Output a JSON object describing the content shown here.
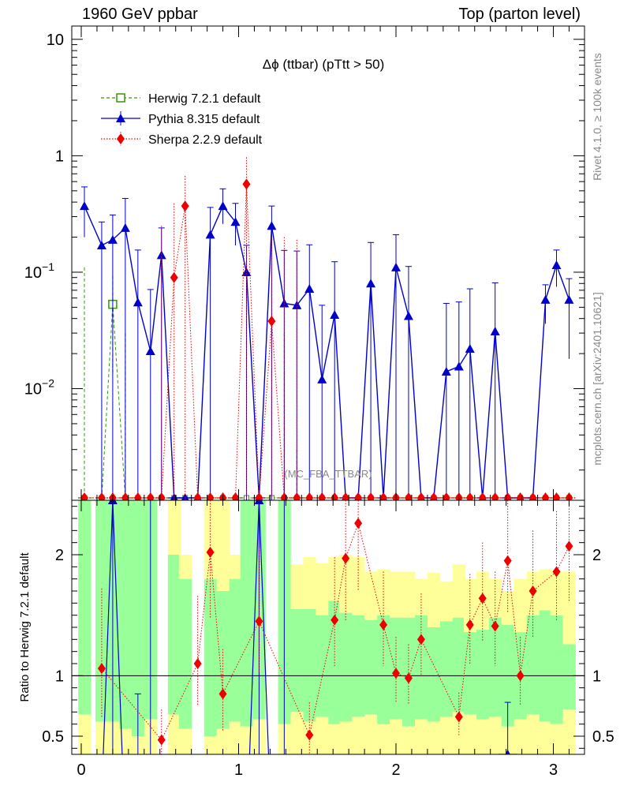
{
  "header": {
    "left": "1960 GeV ppbar",
    "right": "Top (parton level)",
    "side_top": "Rivet 4.1.0, ≥ 100k events",
    "side_bottom": "mcplots.cern.ch [arXiv:2401.10621]"
  },
  "chart_data": [
    {
      "type": "line",
      "title": "Δϕ (ttbar) (pTtt > 50)",
      "analysis_label": "(MC_FBA_TTBAR)",
      "yscale": "log",
      "xlim": [
        -0.05,
        3.2
      ],
      "ylim": [
        0.0011,
        13
      ],
      "y_ticks": [
        {
          "value": 10,
          "label": "10"
        },
        {
          "value": 1,
          "label": "1"
        },
        {
          "value": 0.1,
          "label": "10",
          "exp": "−1"
        },
        {
          "value": 0.01,
          "label": "10",
          "exp": "−2"
        }
      ],
      "x": [
        0.02,
        0.13,
        0.2,
        0.28,
        0.36,
        0.44,
        0.51,
        0.59,
        0.66,
        0.74,
        0.82,
        0.9,
        0.98,
        1.05,
        1.13,
        1.21,
        1.29,
        1.37,
        1.45,
        1.53,
        1.61,
        1.68,
        1.76,
        1.84,
        1.92,
        2.0,
        2.08,
        2.16,
        2.24,
        2.32,
        2.4,
        2.47,
        2.55,
        2.63,
        2.71,
        2.79,
        2.87,
        2.95,
        3.02,
        3.1
      ],
      "series": [
        {
          "name": "Herwig 7.2.1 default",
          "color": "#339900",
          "marker": "open-square",
          "linestyle": "dashed",
          "values": [
            0,
            0,
            0.053,
            0,
            0,
            0,
            0,
            0,
            0,
            0,
            0,
            0,
            0,
            0,
            0,
            0,
            0,
            0,
            0,
            0,
            0,
            0,
            0,
            0,
            0,
            0,
            0,
            0,
            0,
            0,
            0,
            0,
            0,
            0,
            0,
            0,
            0,
            0,
            0,
            0
          ],
          "err_up": [
            0.11,
            0,
            0.04,
            0.03,
            0,
            0,
            0,
            0,
            0,
            0,
            0,
            0,
            0,
            0,
            0,
            0,
            0.03,
            0.003,
            0,
            0,
            0,
            0,
            0,
            0,
            0,
            0,
            0,
            0,
            0,
            0,
            0,
            0,
            0,
            0,
            0,
            0,
            0,
            0,
            0,
            0
          ],
          "err_down": [
            0,
            0,
            0.04,
            0,
            0,
            0,
            0,
            0,
            0,
            0,
            0,
            0,
            0,
            0,
            0,
            0,
            0,
            0,
            0,
            0,
            0,
            0,
            0,
            0,
            0,
            0,
            0,
            0,
            0,
            0,
            0,
            0,
            0,
            0,
            0,
            0,
            0,
            0,
            0,
            0
          ]
        },
        {
          "name": "Pythia 8.315 default",
          "color": "#0000cc",
          "marker": "filled-triangle",
          "linestyle": "solid",
          "values": [
            0.37,
            0.17,
            0.19,
            0.24,
            0.055,
            0.021,
            0.14,
            0,
            0,
            0,
            0.21,
            0.37,
            0.27,
            0.1,
            0,
            0.25,
            0.054,
            0.052,
            0.072,
            0.012,
            0.043,
            0,
            0,
            0.08,
            0,
            0.11,
            0.042,
            0,
            0,
            0.014,
            0.0155,
            0.022,
            0,
            0.031,
            0,
            0,
            0,
            0.058,
            0.115,
            0.058
          ],
          "err_up": [
            0.17,
            0.1,
            0.12,
            0.19,
            0.1,
            0.05,
            0.1,
            0,
            0,
            0,
            0.15,
            0.15,
            0.12,
            0.07,
            0,
            0.12,
            0.1,
            0.1,
            0.1,
            0.04,
            0.08,
            0,
            0,
            0.1,
            0,
            0.1,
            0.07,
            0,
            0,
            0.04,
            0.04,
            0.05,
            0,
            0.05,
            0,
            0,
            0,
            0.02,
            0.04,
            0.03
          ],
          "err_down": [
            0.17,
            0.17,
            0.19,
            0.24,
            0.055,
            0.021,
            0.14,
            0,
            0,
            0,
            0.21,
            0.11,
            0.1,
            0.1,
            0,
            0.25,
            0.054,
            0.052,
            0.072,
            0.012,
            0.043,
            0,
            0,
            0.08,
            0,
            0.11,
            0.042,
            0,
            0,
            0.014,
            0.0155,
            0.022,
            0,
            0.031,
            0,
            0,
            0,
            0.022,
            0.04,
            0.04
          ]
        },
        {
          "name": "Sherpa 2.2.9 default",
          "color": "#ee0000",
          "marker": "filled-diamond",
          "linestyle": "dotted",
          "values": [
            0,
            0,
            0,
            0,
            0,
            0,
            0,
            0.09,
            0.37,
            0,
            0,
            0,
            0,
            0.57,
            0,
            0.038,
            0,
            0,
            0,
            0,
            0,
            0,
            0,
            0,
            0,
            0,
            0,
            0,
            0,
            0,
            0,
            0,
            0,
            0,
            0,
            0,
            0,
            0,
            0,
            0
          ],
          "err_up": [
            0,
            0,
            0,
            0,
            0,
            0,
            0.25,
            0.3,
            0.3,
            0,
            0,
            0,
            0,
            0.4,
            0,
            0.16,
            0.2,
            0.19,
            0,
            0,
            0,
            0,
            0,
            0,
            0,
            0,
            0,
            0,
            0,
            0,
            0,
            0,
            0,
            0,
            0,
            0,
            0,
            0,
            0,
            0
          ],
          "err_down": [
            0,
            0,
            0,
            0,
            0,
            0,
            0,
            0.09,
            0.37,
            0,
            0,
            0,
            0,
            0.57,
            0,
            0.038,
            0,
            0,
            0,
            0,
            0,
            0,
            0,
            0,
            0,
            0,
            0,
            0,
            0,
            0,
            0,
            0,
            0,
            0,
            0,
            0,
            0,
            0,
            0,
            0
          ]
        }
      ]
    },
    {
      "type": "line",
      "title": "",
      "ylabel": "Ratio to Herwig 7.2.1 default",
      "xlabel": "",
      "xlim": [
        -0.05,
        3.2
      ],
      "ylim": [
        0.35,
        2.45
      ],
      "x_ticks": [
        0,
        1,
        2,
        3
      ],
      "y_ticks": [
        0.5,
        1,
        2
      ],
      "reference_line": 1,
      "band_yellow_hi": [
        2.45,
        2.45,
        2.45,
        2.45,
        2.45,
        2.45,
        2.45,
        2.45,
        2.0,
        2.45,
        2.45,
        2.45,
        2.0,
        2.45,
        2.45,
        2.45,
        2.45,
        1.92,
        1.98,
        1.93,
        1.98,
        2.0,
        1.98,
        1.86,
        1.88,
        1.86,
        1.86,
        1.8,
        1.85,
        1.78,
        1.92,
        1.8,
        1.86,
        1.8,
        1.7,
        1.8,
        1.86,
        1.88,
        1.86,
        1.86
      ],
      "band_green_hi": [
        2.45,
        2.45,
        2.45,
        2.45,
        2.45,
        2.45,
        2.45,
        2.0,
        1.8,
        2.45,
        1.8,
        1.7,
        1.8,
        2.45,
        2.45,
        2.45,
        2.45,
        1.55,
        1.55,
        1.5,
        1.62,
        1.52,
        1.5,
        1.46,
        1.5,
        1.48,
        1.48,
        1.5,
        1.4,
        1.45,
        1.48,
        1.36,
        1.38,
        1.48,
        1.42,
        1.36,
        1.5,
        1.54,
        1.5,
        1.26
      ],
      "band_green_lo": [
        0.68,
        0.62,
        0.62,
        0.56,
        0.5,
        0.64,
        0.44,
        0.68,
        0.56,
        0.6,
        0.5,
        0.56,
        0.62,
        0.58,
        0.64,
        0.5,
        0.6,
        0.7,
        0.62,
        0.66,
        0.6,
        0.62,
        0.66,
        0.68,
        0.6,
        0.64,
        0.58,
        0.64,
        0.62,
        0.66,
        0.7,
        0.68,
        0.64,
        0.66,
        0.58,
        0.64,
        0.68,
        0.62,
        0.6,
        0.72
      ],
      "band_yellow_lo": [
        0.35,
        0.35,
        0.35,
        0.35,
        0.35,
        0.35,
        0.35,
        0.35,
        0.35,
        0.35,
        0.35,
        0.35,
        0.35,
        0.35,
        0.35,
        0.35,
        0.35,
        0.35,
        0.35,
        0.35,
        0.35,
        0.35,
        0.35,
        0.35,
        0.35,
        0.35,
        0.35,
        0.35,
        0.35,
        0.35,
        0.35,
        0.35,
        0.35,
        0.35,
        0.35,
        0.35,
        0.35,
        0.35,
        0.35,
        0.35
      ],
      "band_gaps": [
        6,
        9,
        15
      ],
      "series": [
        {
          "name": "Pythia 8.315 / Herwig 7.2.1",
          "color": "#0000cc",
          "marker": "filled-triangle",
          "points": [
            {
              "x": 0.2,
              "y": 2.45,
              "lo": 0.35,
              "hi": 2.45
            },
            {
              "x": 1.13,
              "y": 2.45,
              "lo": 0.35,
              "hi": 2.45
            },
            {
              "x": 2.71,
              "y": 0.35,
              "lo": 0.35,
              "hi": 0.78
            }
          ],
          "error_bars": [
            {
              "x": 0.36,
              "lo": 0.35,
              "hi": 0.85
            },
            {
              "x": 0.44,
              "lo": 0.35,
              "hi": 2.45
            },
            {
              "x": 1.29,
              "lo": 0.35,
              "hi": 2.45
            }
          ]
        },
        {
          "name": "Sherpa 2.2.9 / Herwig 7.2.1",
          "color": "#ee0000",
          "marker": "filled-diamond",
          "points": [
            {
              "x": 0.13,
              "y": 1.06,
              "lo": 0.66,
              "hi": 1.72
            },
            {
              "x": 0.51,
              "y": 0.47,
              "lo": 0.35,
              "hi": 0.72
            },
            {
              "x": 0.74,
              "y": 1.1,
              "lo": 0.76,
              "hi": 1.66
            },
            {
              "x": 0.82,
              "y": 2.02,
              "lo": 1.48,
              "hi": 2.45
            },
            {
              "x": 0.9,
              "y": 0.85,
              "lo": 0.54,
              "hi": 1.22
            },
            {
              "x": 1.13,
              "y": 1.45,
              "lo": 1.02,
              "hi": 2.05
            },
            {
              "x": 1.45,
              "y": 0.51,
              "lo": 0.35,
              "hi": 0.78
            },
            {
              "x": 1.61,
              "y": 1.46,
              "lo": 1.08,
              "hi": 1.98
            },
            {
              "x": 1.68,
              "y": 1.97,
              "lo": 1.45,
              "hi": 2.45
            },
            {
              "x": 1.76,
              "y": 2.26,
              "lo": 1.7,
              "hi": 2.45
            },
            {
              "x": 1.92,
              "y": 1.42,
              "lo": 1.08,
              "hi": 1.86
            },
            {
              "x": 2.0,
              "y": 1.02,
              "lo": 0.78,
              "hi": 1.32
            },
            {
              "x": 2.08,
              "y": 0.98,
              "lo": 0.76,
              "hi": 1.26
            },
            {
              "x": 2.16,
              "y": 1.3,
              "lo": 1.0,
              "hi": 1.68
            },
            {
              "x": 2.4,
              "y": 0.66,
              "lo": 0.5,
              "hi": 0.86
            },
            {
              "x": 2.47,
              "y": 1.42,
              "lo": 1.1,
              "hi": 1.84
            },
            {
              "x": 2.55,
              "y": 1.64,
              "lo": 1.28,
              "hi": 2.1
            },
            {
              "x": 2.63,
              "y": 1.41,
              "lo": 1.08,
              "hi": 1.86
            },
            {
              "x": 2.71,
              "y": 1.95,
              "lo": 1.52,
              "hi": 2.45
            },
            {
              "x": 2.79,
              "y": 1.0,
              "lo": 0.76,
              "hi": 1.32
            },
            {
              "x": 2.87,
              "y": 1.7,
              "lo": 1.32,
              "hi": 2.2
            },
            {
              "x": 3.02,
              "y": 1.86,
              "lo": 1.46,
              "hi": 2.36
            },
            {
              "x": 3.1,
              "y": 2.07,
              "lo": 1.62,
              "hi": 2.45
            }
          ]
        }
      ]
    }
  ]
}
